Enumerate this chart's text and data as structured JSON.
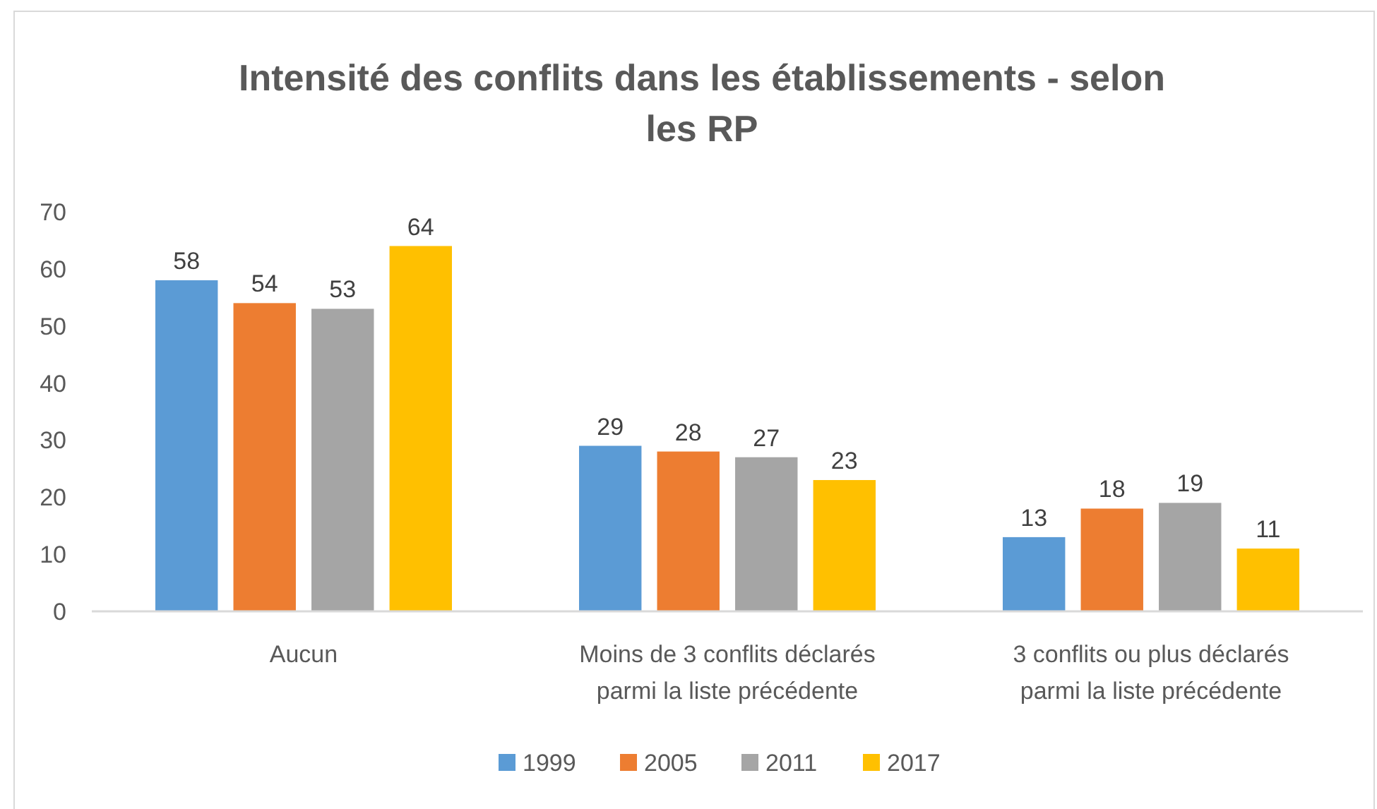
{
  "chart_data": {
    "type": "bar",
    "title": "Intensité des conflits dans les établissements - selon les RP",
    "categories": [
      "Aucun",
      "Moins de 3 conflits déclarés parmi la liste précédente",
      "3 conflits ou plus déclarés parmi la liste précédente"
    ],
    "series": [
      {
        "name": "1999",
        "color": "#5b9bd5",
        "values": [
          58,
          29,
          13
        ]
      },
      {
        "name": "2005",
        "color": "#ed7d31",
        "values": [
          54,
          28,
          18
        ]
      },
      {
        "name": "2011",
        "color": "#a5a5a5",
        "values": [
          53,
          27,
          19
        ]
      },
      {
        "name": "2017",
        "color": "#ffc000",
        "values": [
          64,
          23,
          11
        ]
      }
    ],
    "ylim": [
      0,
      70
    ],
    "yticks": [
      0,
      10,
      20,
      30,
      40,
      50,
      60,
      70
    ],
    "data_labels": true,
    "legend": "bottom",
    "grid": false
  }
}
